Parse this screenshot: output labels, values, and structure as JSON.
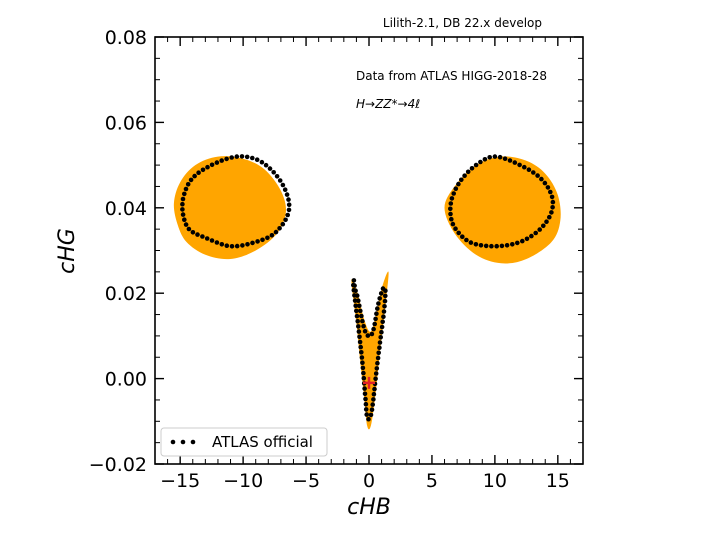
{
  "chart_data": {
    "type": "scatter",
    "title": "Lilith-2.1, DB 22.x develop",
    "annotations": [
      "Data from ATLAS HIGG-2018-28",
      "H→ZZ*→4ℓ"
    ],
    "xlabel": "cHB",
    "ylabel": "cHG",
    "xlim": [
      -17,
      17
    ],
    "ylim": [
      -0.02,
      0.08
    ],
    "xticks": [
      -15,
      -10,
      -5,
      0,
      5,
      10,
      15
    ],
    "yticks": [
      -0.02,
      0.0,
      0.02,
      0.04,
      0.06,
      0.08
    ],
    "xtick_labels": [
      "−15",
      "−10",
      "−5",
      "0",
      "5",
      "10",
      "15"
    ],
    "ytick_labels": [
      "−0.02",
      "0.00",
      "0.02",
      "0.04",
      "0.06",
      "0.08"
    ],
    "legend": {
      "entries": [
        "ATLAS official"
      ],
      "placement": "lower-left"
    },
    "colors": {
      "region": "#FFA500",
      "points": "#000000",
      "best_fit": "#E0202A"
    },
    "best_fit": {
      "x": 0.0,
      "y": -0.001
    },
    "regions": [
      {
        "name": "",
        "points": [
          [
            -15.2,
            0.036
          ],
          [
            -15.5,
            0.041
          ],
          [
            -15.0,
            0.046
          ],
          [
            -13.8,
            0.05
          ],
          [
            -12.0,
            0.052
          ],
          [
            -10.0,
            0.0515
          ],
          [
            -8.3,
            0.049
          ],
          [
            -7.0,
            0.044
          ],
          [
            -6.6,
            0.039
          ],
          [
            -7.3,
            0.034
          ],
          [
            -9.0,
            0.03
          ],
          [
            -11.0,
            0.028
          ],
          [
            -13.0,
            0.029
          ],
          [
            -14.5,
            0.032
          ]
        ]
      },
      {
        "name": "",
        "points": [
          [
            6.0,
            0.04
          ],
          [
            6.8,
            0.045
          ],
          [
            8.5,
            0.05
          ],
          [
            10.5,
            0.052
          ],
          [
            12.5,
            0.051
          ],
          [
            14.0,
            0.048
          ],
          [
            15.0,
            0.043
          ],
          [
            15.2,
            0.037
          ],
          [
            14.5,
            0.032
          ],
          [
            12.5,
            0.028
          ],
          [
            10.5,
            0.027
          ],
          [
            8.5,
            0.029
          ],
          [
            6.8,
            0.034
          ]
        ]
      },
      {
        "name": "",
        "points": [
          [
            -1.4,
            0.023
          ],
          [
            -1.0,
            0.013
          ],
          [
            -0.7,
            0.004
          ],
          [
            -0.4,
            -0.004
          ],
          [
            -0.15,
            -0.011
          ],
          [
            0.15,
            -0.011
          ],
          [
            0.5,
            -0.004
          ],
          [
            0.9,
            0.007
          ],
          [
            1.3,
            0.017
          ],
          [
            1.55,
            0.025
          ],
          [
            1.0,
            0.021
          ],
          [
            0.4,
            0.013
          ],
          [
            0.05,
            0.011
          ],
          [
            -0.4,
            0.014
          ],
          [
            -0.9,
            0.02
          ]
        ]
      }
    ],
    "series": [
      {
        "name": "ATLAS official",
        "type": "scatter",
        "closed": true,
        "points": [
          [
            -10.5,
            0.052
          ],
          [
            -12.5,
            0.05
          ],
          [
            -14.0,
            0.047
          ],
          [
            -14.7,
            0.043
          ],
          [
            -14.8,
            0.039
          ],
          [
            -14.3,
            0.035
          ],
          [
            -13.0,
            0.033
          ],
          [
            -11.0,
            0.031
          ],
          [
            -9.0,
            0.032
          ],
          [
            -7.5,
            0.034
          ],
          [
            -6.5,
            0.038
          ],
          [
            -6.4,
            0.042
          ],
          [
            -7.2,
            0.047
          ],
          [
            -8.7,
            0.051
          ]
        ]
      },
      {
        "name": "ATLAS official",
        "type": "scatter",
        "closed": true,
        "points": [
          [
            10.0,
            0.052
          ],
          [
            12.0,
            0.05
          ],
          [
            13.6,
            0.047
          ],
          [
            14.5,
            0.043
          ],
          [
            14.5,
            0.039
          ],
          [
            13.6,
            0.035
          ],
          [
            12.0,
            0.032
          ],
          [
            10.0,
            0.031
          ],
          [
            8.0,
            0.032
          ],
          [
            6.7,
            0.036
          ],
          [
            6.5,
            0.041
          ],
          [
            7.2,
            0.046
          ],
          [
            8.5,
            0.05
          ]
        ]
      },
      {
        "name": "ATLAS official",
        "type": "scatter",
        "closed": true,
        "points": [
          [
            -1.2,
            0.023
          ],
          [
            -1.1,
            0.021
          ],
          [
            -0.9,
            0.019
          ],
          [
            -0.7,
            0.016
          ],
          [
            -0.3,
            0.011
          ],
          [
            0.1,
            0.01
          ],
          [
            0.4,
            0.012
          ],
          [
            0.7,
            0.017
          ],
          [
            1.1,
            0.021
          ],
          [
            1.3,
            0.0205
          ],
          [
            1.2,
            0.016
          ],
          [
            0.9,
            0.009
          ],
          [
            0.6,
            0.002
          ],
          [
            0.3,
            -0.006
          ],
          [
            0.1,
            -0.009
          ],
          [
            -0.15,
            -0.009
          ],
          [
            -0.3,
            -0.004
          ],
          [
            -0.5,
            0.003
          ],
          [
            -0.8,
            0.011
          ],
          [
            -1.1,
            0.018
          ],
          [
            -1.25,
            0.022
          ]
        ]
      }
    ]
  }
}
